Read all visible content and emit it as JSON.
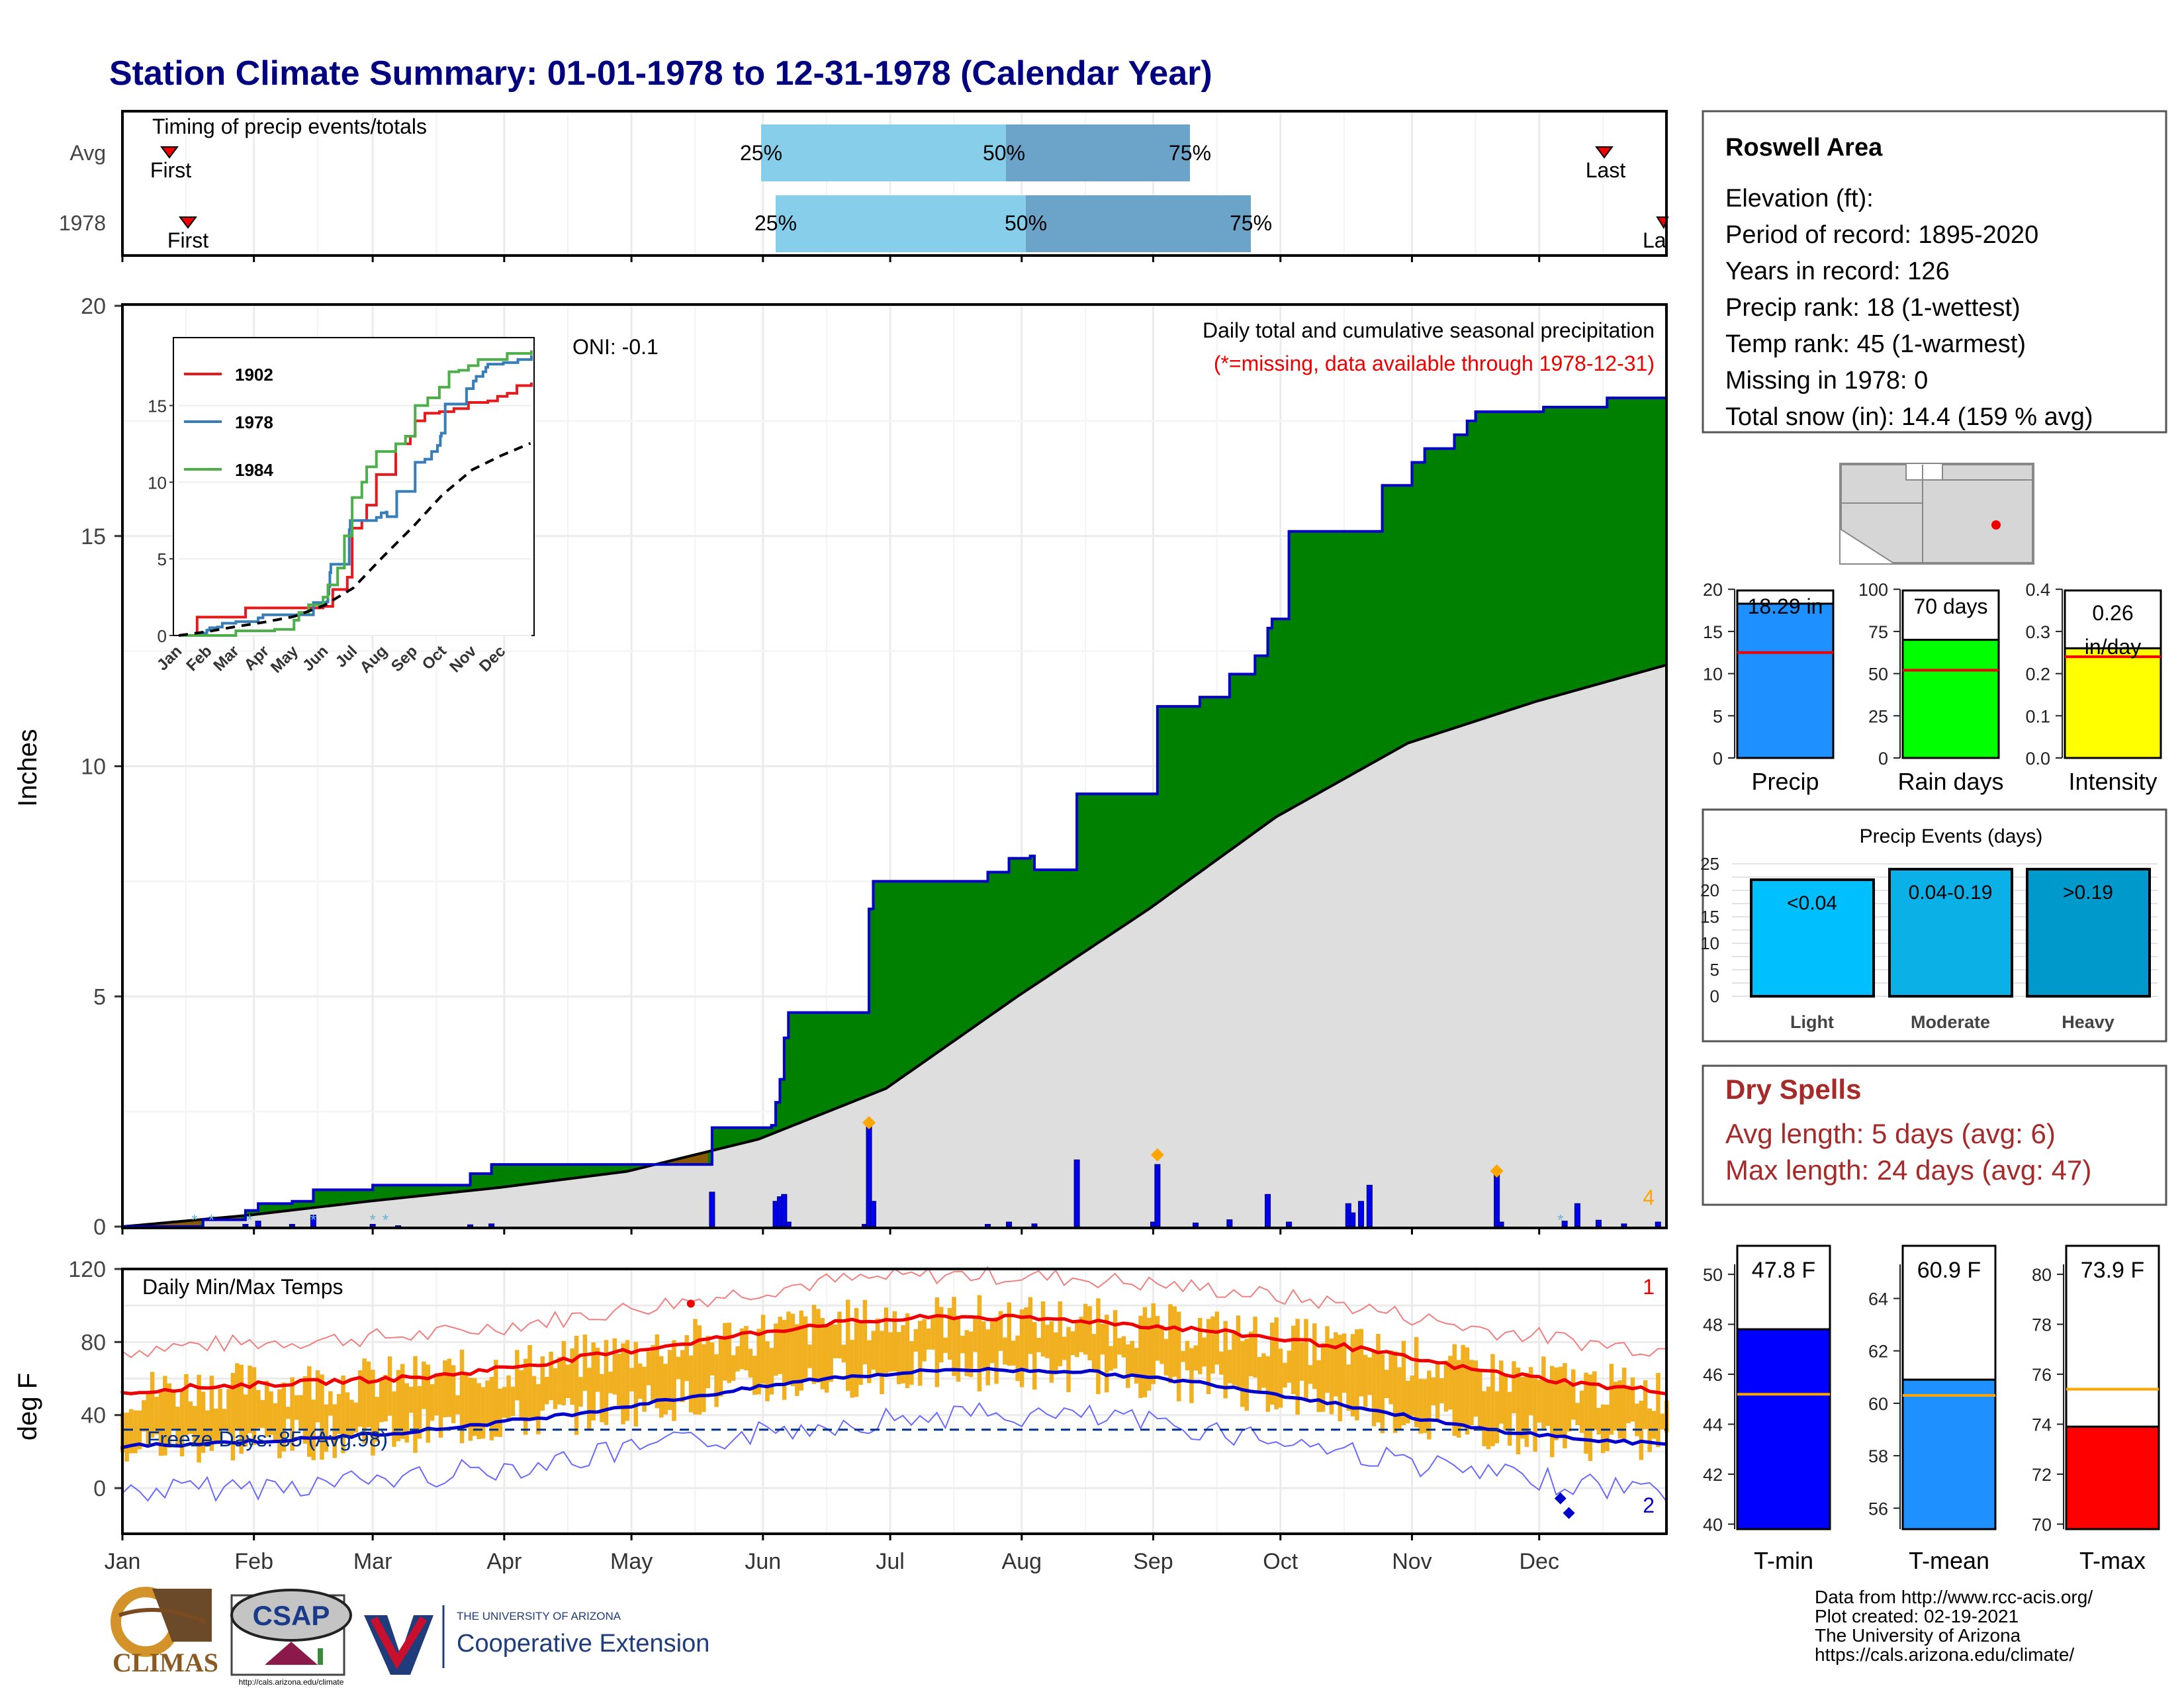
{
  "title": "Station Climate Summary: 01-01-1978 to 12-31-1978 (Calendar Year)",
  "colors": {
    "title": "#000080",
    "precip_bar": "#1e90ff",
    "rain_days_bar": "#00ff00",
    "intensity_bar": "#ffff00",
    "tmin_bar": "#0000ff",
    "tmean_bar": "#1e90ff",
    "tmax_bar": "#ff0000",
    "dry_spells": "#a52a2a",
    "surplus": "#008000",
    "deficit": "#8b5a00",
    "normal_fill": "#dedede",
    "temp_bars": "#f0b020"
  },
  "timing_panel": {
    "title": "Timing of precip events/totals",
    "rows": [
      {
        "label": "Avg",
        "first": "First",
        "last": "Last",
        "p25": "25%",
        "p50": "50%",
        "p75": "75%"
      },
      {
        "label": "1978",
        "first": "First",
        "last": "Last",
        "p25": "25%",
        "p50": "50%",
        "p75": "75%"
      }
    ]
  },
  "info_box": {
    "name": "Roswell Area",
    "lines": [
      "Elevation (ft):",
      "Period of record: 1895-2020",
      "Years in record: 126",
      "Precip rank: 18 (1-wettest)",
      "Temp rank: 45 (1-warmest)",
      "Missing in 1978: 0",
      "Total snow (in): 14.4 (159 % avg)"
    ]
  },
  "precip_panel": {
    "ylabel": "Inches",
    "oni": "ONI: -0.1",
    "title": "Daily total and cumulative seasonal precipitation",
    "subtitle": "(*=missing, data available through 1978-12-31)",
    "corner_count": "4",
    "ytick_labels": [
      "0",
      "5",
      "10",
      "15",
      "20"
    ]
  },
  "temp_panel": {
    "ylabel": "deg F",
    "title": "Daily Min/Max Temps",
    "freeze": "Freeze Days: 85 (Avg:98)",
    "record_high_count": "1",
    "record_low_count": "2",
    "ytick_labels": [
      "0",
      "40",
      "80",
      "120"
    ]
  },
  "month_labels": [
    "Jan",
    "Feb",
    "Mar",
    "Apr",
    "May",
    "Jun",
    "Jul",
    "Aug",
    "Sep",
    "Oct",
    "Nov",
    "Dec"
  ],
  "inset": {
    "legend": [
      "1902",
      "1978",
      "1984"
    ],
    "ytick_labels": [
      "0",
      "5",
      "10",
      "15"
    ],
    "month_labels": [
      "Jan",
      "Feb",
      "Mar",
      "Apr",
      "May",
      "Jun",
      "Jul",
      "Aug",
      "Sep",
      "Oct",
      "Nov",
      "Dec"
    ]
  },
  "mini_bars": {
    "precip": {
      "label": "Precip",
      "value_text": "18.29 in",
      "ticks": [
        "0",
        "5",
        "10",
        "15",
        "20"
      ]
    },
    "rain_days": {
      "label": "Rain days",
      "value_text": "70 days",
      "ticks": [
        "0",
        "25",
        "50",
        "75",
        "100"
      ]
    },
    "intensity": {
      "label": "Intensity",
      "value_text": "0.26",
      "value_unit": "in/day",
      "ticks": [
        "0.0",
        "0.1",
        "0.2",
        "0.3",
        "0.4"
      ]
    }
  },
  "events_panel": {
    "title": "Precip Events (days)",
    "ticks": [
      "0",
      "5",
      "10",
      "15",
      "20",
      "25"
    ],
    "categories": [
      "Light",
      "Moderate",
      "Heavy"
    ],
    "bar_labels": [
      "<0.04",
      "0.04-0.19",
      ">0.19"
    ]
  },
  "dry_spells": {
    "title": "Dry Spells",
    "avg": "Avg length: 5 days (avg: 6)",
    "max": "Max length: 24 days (avg: 47)"
  },
  "temp_bars": {
    "tmin": {
      "label": "T-min",
      "value_text": "47.8 F",
      "ticks": [
        "40",
        "42",
        "44",
        "46",
        "48",
        "50"
      ]
    },
    "tmean": {
      "label": "T-mean",
      "value_text": "60.9 F",
      "ticks": [
        "56",
        "58",
        "60",
        "62",
        "64"
      ]
    },
    "tmax": {
      "label": "T-max",
      "value_text": "73.9 F",
      "ticks": [
        "70",
        "72",
        "74",
        "76",
        "78",
        "80"
      ]
    }
  },
  "footer": {
    "lines": [
      "Data from http://www.rcc-acis.org/",
      "Plot created: 02-19-2021",
      "The University of Arizona",
      "https://cals.arizona.edu/climate/"
    ],
    "climas": "CLIMAS",
    "csap": "CSAP",
    "csap_url": "http://cals.arizona.edu/climate",
    "ua_top": "THE UNIVERSITY OF ARIZONA",
    "ua_bottom": "Cooperative Extension"
  },
  "chart_data": [
    {
      "type": "area",
      "title": "Daily total and cumulative seasonal precipitation",
      "ylabel": "Inches",
      "ylim": [
        0,
        20
      ],
      "x_unit": "day of year 1978",
      "cumulative_observed_1978": [
        [
          1,
          0
        ],
        [
          30,
          0.4
        ],
        [
          33,
          0.5
        ],
        [
          41,
          0.6
        ],
        [
          46,
          0.85
        ],
        [
          60,
          0.9
        ],
        [
          83,
          1.15
        ],
        [
          88,
          1.3
        ],
        [
          100,
          1.35
        ],
        [
          139,
          1.35
        ],
        [
          140,
          1.35
        ],
        [
          125,
          2.2
        ],
        [
          154,
          2.5
        ],
        [
          155,
          3.2
        ],
        [
          156,
          4.0
        ],
        [
          158,
          4.7
        ],
        [
          175,
          4.7
        ],
        [
          177,
          6.8
        ],
        [
          179,
          7.5
        ],
        [
          210,
          7.5
        ],
        [
          218,
          8.0
        ],
        [
          226,
          9.4
        ],
        [
          245,
          9.4
        ],
        [
          247,
          11.3
        ],
        [
          265,
          12.0
        ],
        [
          272,
          12.5
        ],
        [
          294,
          13.0
        ],
        [
          297,
          14.5
        ],
        [
          305,
          14.7
        ],
        [
          310,
          15.2
        ],
        [
          325,
          15.2
        ],
        [
          350,
          15.2
        ],
        [
          352,
          16.6
        ],
        [
          365,
          16.7
        ],
        [
          380,
          17.6
        ],
        [
          380,
          17.8
        ],
        [
          408,
          18.0
        ],
        [
          430,
          18.0
        ],
        [
          448,
          18.2
        ],
        [
          480,
          18.29
        ]
      ],
      "cumulative_average": [
        [
          1,
          0
        ],
        [
          31,
          0.25
        ],
        [
          59,
          0.55
        ],
        [
          90,
          0.85
        ],
        [
          120,
          1.2
        ],
        [
          151,
          1.9
        ],
        [
          181,
          3.0
        ],
        [
          212,
          5.0
        ],
        [
          243,
          6.9
        ],
        [
          273,
          8.9
        ],
        [
          304,
          10.5
        ],
        [
          334,
          11.4
        ],
        [
          365,
          12.2
        ]
      ],
      "daily_markers": {
        "record_days_noted": "4"
      }
    },
    {
      "type": "line",
      "title": "Daily Min/Max Temps",
      "ylabel": "deg F",
      "ylim": [
        -25,
        120
      ],
      "freeze_line_value": 32,
      "avg_max_by_month": [
        [
          15,
          55
        ],
        [
          46,
          58
        ],
        [
          74,
          61
        ],
        [
          105,
          70
        ],
        [
          135,
          80
        ],
        [
          166,
          90
        ],
        [
          196,
          94
        ],
        [
          227,
          92
        ],
        [
          258,
          86
        ],
        [
          288,
          78
        ],
        [
          319,
          65
        ],
        [
          349,
          56
        ]
      ],
      "avg_min_by_month": [
        [
          15,
          24
        ],
        [
          46,
          27
        ],
        [
          74,
          32
        ],
        [
          105,
          40
        ],
        [
          135,
          50
        ],
        [
          166,
          60
        ],
        [
          196,
          65
        ],
        [
          227,
          64
        ],
        [
          258,
          57
        ],
        [
          288,
          46
        ],
        [
          319,
          33
        ],
        [
          349,
          26
        ]
      ]
    },
    {
      "type": "bar",
      "categories": [
        "Precip",
        "Rain days",
        "Intensity"
      ],
      "values": [
        18.29,
        70,
        0.26
      ],
      "averages": [
        12.5,
        52,
        0.24
      ]
    },
    {
      "type": "bar",
      "title": "Precip Events (days)",
      "categories": [
        "Light",
        "Moderate",
        "Heavy"
      ],
      "values": [
        22,
        24,
        24
      ],
      "ylim": [
        0,
        25
      ]
    },
    {
      "type": "bar",
      "categories": [
        "T-min",
        "T-mean",
        "T-max"
      ],
      "values": [
        47.8,
        60.9,
        73.9
      ],
      "averages": [
        45.2,
        60.3,
        75.4
      ]
    }
  ]
}
